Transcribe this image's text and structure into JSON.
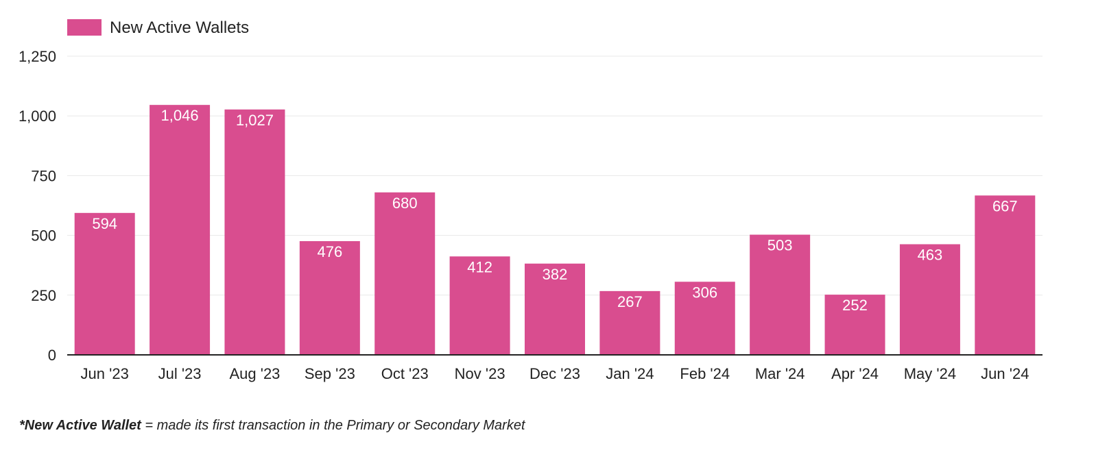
{
  "chart_data": {
    "type": "bar",
    "categories": [
      "Jun '23",
      "Jul '23",
      "Aug '23",
      "Sep '23",
      "Oct '23",
      "Nov '23",
      "Dec '23",
      "Jan '24",
      "Feb '24",
      "Mar '24",
      "Apr '24",
      "May '24",
      "Jun '24"
    ],
    "series": [
      {
        "name": "New Active Wallets",
        "values": [
          594,
          1046,
          1027,
          476,
          680,
          412,
          382,
          267,
          306,
          503,
          252,
          463,
          667
        ]
      }
    ],
    "value_labels": [
      "594",
      "1,046",
      "1,027",
      "476",
      "680",
      "412",
      "382",
      "267",
      "306",
      "503",
      "252",
      "463",
      "667"
    ],
    "yticks": [
      "0",
      "250",
      "500",
      "750",
      "1,000",
      "1,250"
    ],
    "ytick_values": [
      0,
      250,
      500,
      750,
      1000,
      1250
    ],
    "ylim": [
      0,
      1250
    ],
    "grid": true,
    "legend_position": "top-left",
    "bar_color": "#d94d8f",
    "title": "",
    "xlabel": "",
    "ylabel": ""
  },
  "footnote": {
    "term": "*New Active Wallet",
    "definition": " = made its first transaction in the Primary or Secondary Market"
  }
}
